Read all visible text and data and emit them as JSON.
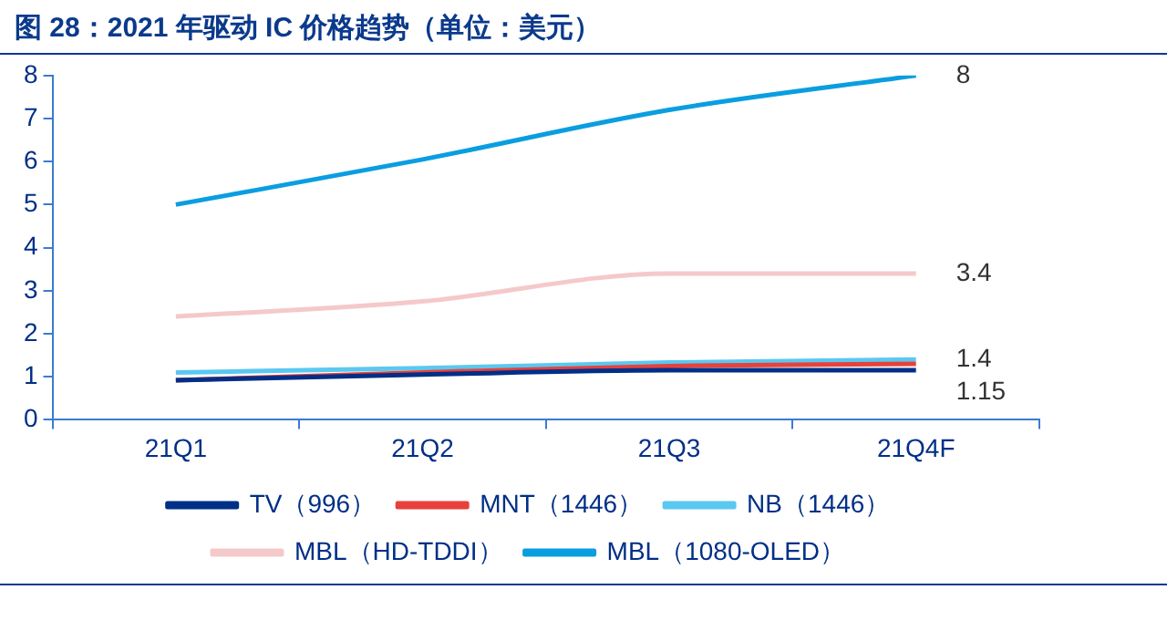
{
  "chart_data": {
    "type": "line",
    "title": "图 28：2021 年驱动 IC 价格趋势（单位：美元）",
    "categories": [
      "21Q1",
      "21Q2",
      "21Q3",
      "21Q4F"
    ],
    "series": [
      {
        "name": "TV（996）",
        "color": "#002f87",
        "values": [
          0.92,
          1.05,
          1.15,
          1.15
        ],
        "value_labels": [
          null,
          null,
          null,
          "1.15"
        ]
      },
      {
        "name": "MNT（1446）",
        "color": "#e8413c",
        "values": [
          0.92,
          1.1,
          1.25,
          1.3
        ]
      },
      {
        "name": "NB（1446）",
        "color": "#5bc8f0",
        "values": [
          1.1,
          1.2,
          1.33,
          1.4
        ],
        "value_labels": [
          null,
          null,
          null,
          "1.4"
        ]
      },
      {
        "name": "MBL（HD-TDDI）",
        "color": "#f5c9c9",
        "values": [
          2.4,
          2.75,
          3.4,
          3.4
        ],
        "value_labels": [
          null,
          null,
          null,
          "3.4"
        ]
      },
      {
        "name": "MBL（1080-OLED）",
        "color": "#0a9ee0",
        "values": [
          5,
          6.05,
          7.2,
          8
        ],
        "value_labels": [
          null,
          null,
          null,
          "8"
        ]
      }
    ],
    "ylim": [
      0,
      8
    ],
    "yticks": [
      0,
      1,
      2,
      3,
      4,
      5,
      6,
      7,
      8
    ],
    "grid": false,
    "legend": "bottom",
    "marker": "none",
    "line_style": "solid"
  }
}
